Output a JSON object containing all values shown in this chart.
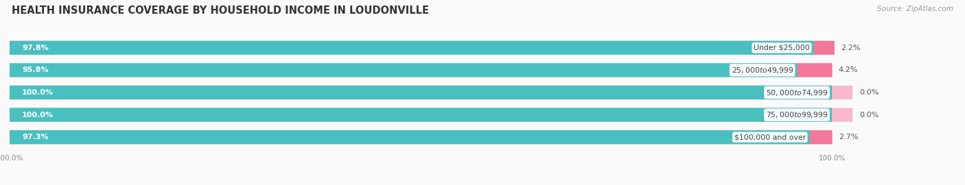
{
  "title": "HEALTH INSURANCE COVERAGE BY HOUSEHOLD INCOME IN LOUDONVILLE",
  "source": "Source: ZipAtlas.com",
  "categories": [
    "Under $25,000",
    "$25,000 to $49,999",
    "$50,000 to $74,999",
    "$75,000 to $99,999",
    "$100,000 and over"
  ],
  "with_coverage": [
    97.8,
    95.8,
    100.0,
    100.0,
    97.3
  ],
  "without_coverage": [
    2.2,
    4.2,
    0.0,
    0.0,
    2.7
  ],
  "color_with": "#49BFBF",
  "color_without": "#F4789A",
  "color_with_light": "#90D8D8",
  "color_without_light": "#F9B8CE",
  "bar_bg_color": "#ECECEC",
  "background_color": "#FAFAFA",
  "title_fontsize": 10.5,
  "label_fontsize": 8.0,
  "cat_fontsize": 7.8,
  "tick_fontsize": 7.5,
  "legend_fontsize": 8.0,
  "source_fontsize": 7.5,
  "bar_height": 0.6,
  "total_bar_width": 100,
  "xlim_max": 115,
  "bottom_tick_label": "100.0%"
}
